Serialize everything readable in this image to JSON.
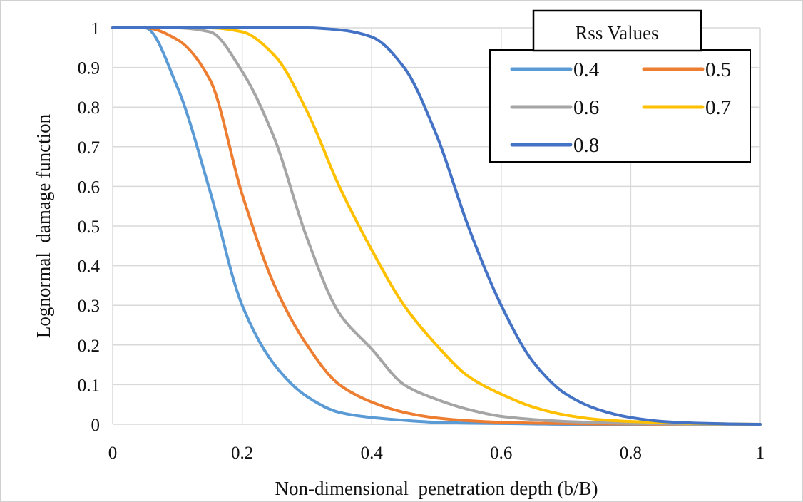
{
  "chart_data": {
    "type": "line",
    "xlabel": "Non-dimensional  penetration depth (b/B)",
    "ylabel": "Lognormal  damage function",
    "xlim": [
      0,
      1
    ],
    "ylim": [
      0,
      1
    ],
    "xticks": [
      "0",
      "0.2",
      "0.4",
      "0.6",
      "0.8",
      "1"
    ],
    "yticks": [
      "0",
      "0.1",
      "0.2",
      "0.3",
      "0.4",
      "0.5",
      "0.6",
      "0.7",
      "0.8",
      "0.9",
      "1"
    ],
    "grid": true,
    "legend": {
      "title": "Rss Values",
      "placement": "top-right",
      "columns": 2
    },
    "x": [
      0,
      0.05,
      0.1,
      0.15,
      0.2,
      0.25,
      0.3,
      0.35,
      0.4,
      0.45,
      0.5,
      0.55,
      0.6,
      0.65,
      0.7,
      0.75,
      0.8,
      0.85,
      0.9,
      0.95,
      1
    ],
    "series": [
      {
        "name": "0.4",
        "color": "#5B9BD5",
        "values": [
          1,
          1,
          0.85,
          0.59,
          0.3,
          0.15,
          0.07,
          0.03,
          0.017,
          0.01,
          0.005,
          0.003,
          0.002,
          0.001,
          0,
          0,
          0,
          0,
          0,
          0,
          0
        ]
      },
      {
        "name": "0.5",
        "color": "#ED7D31",
        "values": [
          1,
          1,
          0.97,
          0.87,
          0.58,
          0.35,
          0.2,
          0.1,
          0.056,
          0.03,
          0.016,
          0.009,
          0.005,
          0.003,
          0.002,
          0.001,
          0.001,
          0,
          0,
          0,
          0
        ]
      },
      {
        "name": "0.6",
        "color": "#A5A5A5",
        "values": [
          1,
          1,
          1,
          0.99,
          0.89,
          0.72,
          0.47,
          0.28,
          0.19,
          0.1,
          0.063,
          0.037,
          0.02,
          0.012,
          0.007,
          0.004,
          0.002,
          0.001,
          0,
          0,
          0
        ]
      },
      {
        "name": "0.7",
        "color": "#FFC000",
        "values": [
          1,
          1,
          1,
          1,
          0.99,
          0.93,
          0.79,
          0.6,
          0.44,
          0.3,
          0.2,
          0.12,
          0.076,
          0.043,
          0.023,
          0.012,
          0.007,
          0.004,
          0.002,
          0.001,
          0
        ]
      },
      {
        "name": "0.8",
        "color": "#4472C4",
        "values": [
          1,
          1,
          1,
          1,
          1,
          1,
          1,
          0.995,
          0.977,
          0.9,
          0.73,
          0.495,
          0.3,
          0.156,
          0.076,
          0.037,
          0.017,
          0.007,
          0.003,
          0.001,
          0
        ]
      }
    ]
  }
}
